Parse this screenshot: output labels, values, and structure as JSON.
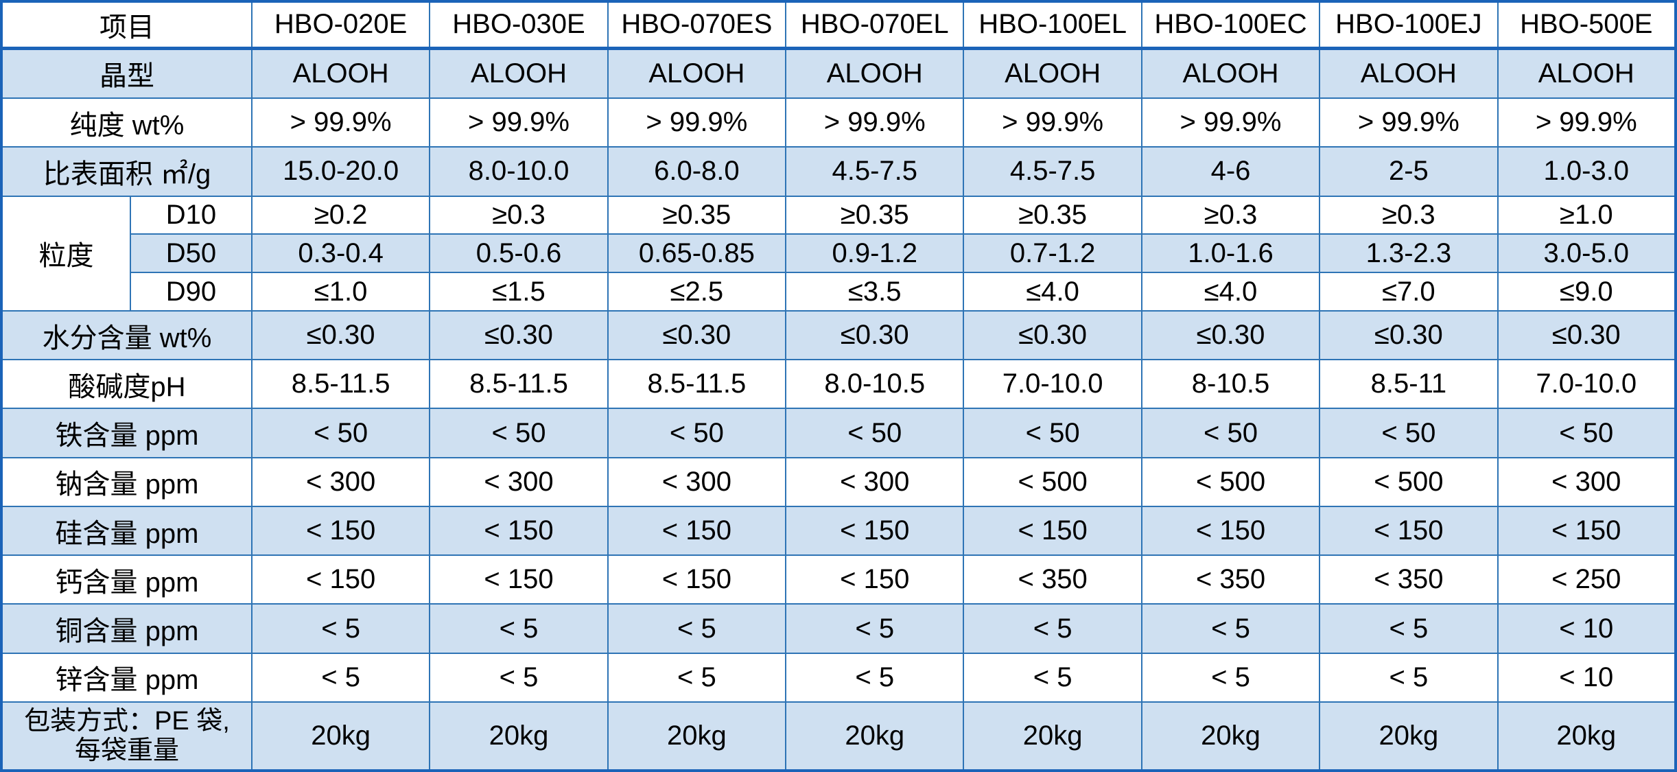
{
  "table": {
    "columns": [
      "项目",
      "HBO-020E",
      "HBO-030E",
      "HBO-070ES",
      "HBO-070EL",
      "HBO-100EL",
      "HBO-100EC",
      "HBO-100EJ",
      "HBO-500E"
    ],
    "particle_group_label": "粒度",
    "rows": [
      {
        "label": "晶型",
        "shaded": true,
        "values": [
          "ALOOH",
          "ALOOH",
          "ALOOH",
          "ALOOH",
          "ALOOH",
          "ALOOH",
          "ALOOH",
          "ALOOH"
        ]
      },
      {
        "label": "纯度 wt%",
        "shaded": false,
        "values": [
          "> 99.9%",
          "> 99.9%",
          "> 99.9%",
          "> 99.9%",
          "> 99.9%",
          "> 99.9%",
          "> 99.9%",
          "> 99.9%"
        ]
      },
      {
        "label": "比表面积 ㎡/g",
        "shaded": true,
        "values": [
          "15.0-20.0",
          "8.0-10.0",
          "6.0-8.0",
          "4.5-7.5",
          "4.5-7.5",
          "4-6",
          "2-5",
          "1.0-3.0"
        ]
      },
      {
        "label": "D10",
        "group": "start",
        "shaded": false,
        "values": [
          "≥0.2",
          "≥0.3",
          "≥0.35",
          "≥0.35",
          "≥0.35",
          "≥0.3",
          "≥0.3",
          "≥1.0"
        ]
      },
      {
        "label": "D50",
        "group": "member",
        "shaded": true,
        "values": [
          "0.3-0.4",
          "0.5-0.6",
          "0.65-0.85",
          "0.9-1.2",
          "0.7-1.2",
          "1.0-1.6",
          "1.3-2.3",
          "3.0-5.0"
        ]
      },
      {
        "label": "D90",
        "group": "member",
        "shaded": false,
        "values": [
          "≤1.0",
          "≤1.5",
          "≤2.5",
          "≤3.5",
          "≤4.0",
          "≤4.0",
          "≤7.0",
          "≤9.0"
        ]
      },
      {
        "label": "水分含量 wt%",
        "shaded": true,
        "values": [
          "≤0.30",
          "≤0.30",
          "≤0.30",
          "≤0.30",
          "≤0.30",
          "≤0.30",
          "≤0.30",
          "≤0.30"
        ]
      },
      {
        "label": "酸碱度pH",
        "shaded": false,
        "values": [
          "8.5-11.5",
          "8.5-11.5",
          "8.5-11.5",
          "8.0-10.5",
          "7.0-10.0",
          "8-10.5",
          "8.5-11",
          "7.0-10.0"
        ]
      },
      {
        "label": "铁含量 ppm",
        "shaded": true,
        "values": [
          "< 50",
          "< 50",
          "< 50",
          "< 50",
          "< 50",
          "< 50",
          "< 50",
          "< 50"
        ]
      },
      {
        "label": "钠含量 ppm",
        "shaded": false,
        "values": [
          "< 300",
          "< 300",
          "< 300",
          "< 300",
          "< 500",
          "< 500",
          "< 500",
          "< 300"
        ]
      },
      {
        "label": "硅含量 ppm",
        "shaded": true,
        "values": [
          "< 150",
          "< 150",
          "< 150",
          "< 150",
          "< 150",
          "< 150",
          "< 150",
          "< 150"
        ]
      },
      {
        "label": "钙含量 ppm",
        "shaded": false,
        "values": [
          "< 150",
          "< 150",
          "< 150",
          "< 150",
          "< 350",
          "< 350",
          "< 350",
          "< 250"
        ]
      },
      {
        "label": "铜含量 ppm",
        "shaded": true,
        "values": [
          "< 5",
          "< 5",
          "< 5",
          "< 5",
          "< 5",
          "< 5",
          "< 5",
          "< 10"
        ]
      },
      {
        "label": "锌含量 ppm",
        "shaded": false,
        "values": [
          "< 5",
          "< 5",
          "< 5",
          "< 5",
          "< 5",
          "< 5",
          "< 5",
          "< 10"
        ]
      },
      {
        "label": "包装方式：PE 袋,\n每袋重量",
        "shaded": true,
        "tall": true,
        "values": [
          "20kg",
          "20kg",
          "20kg",
          "20kg",
          "20kg",
          "20kg",
          "20kg",
          "20kg"
        ]
      }
    ],
    "colors": {
      "shaded_bg": "#cfe0f1",
      "grid_line": "#2e74b5",
      "heavy_line": "#1b63b8",
      "text": "#000000",
      "background": "#ffffff"
    }
  }
}
